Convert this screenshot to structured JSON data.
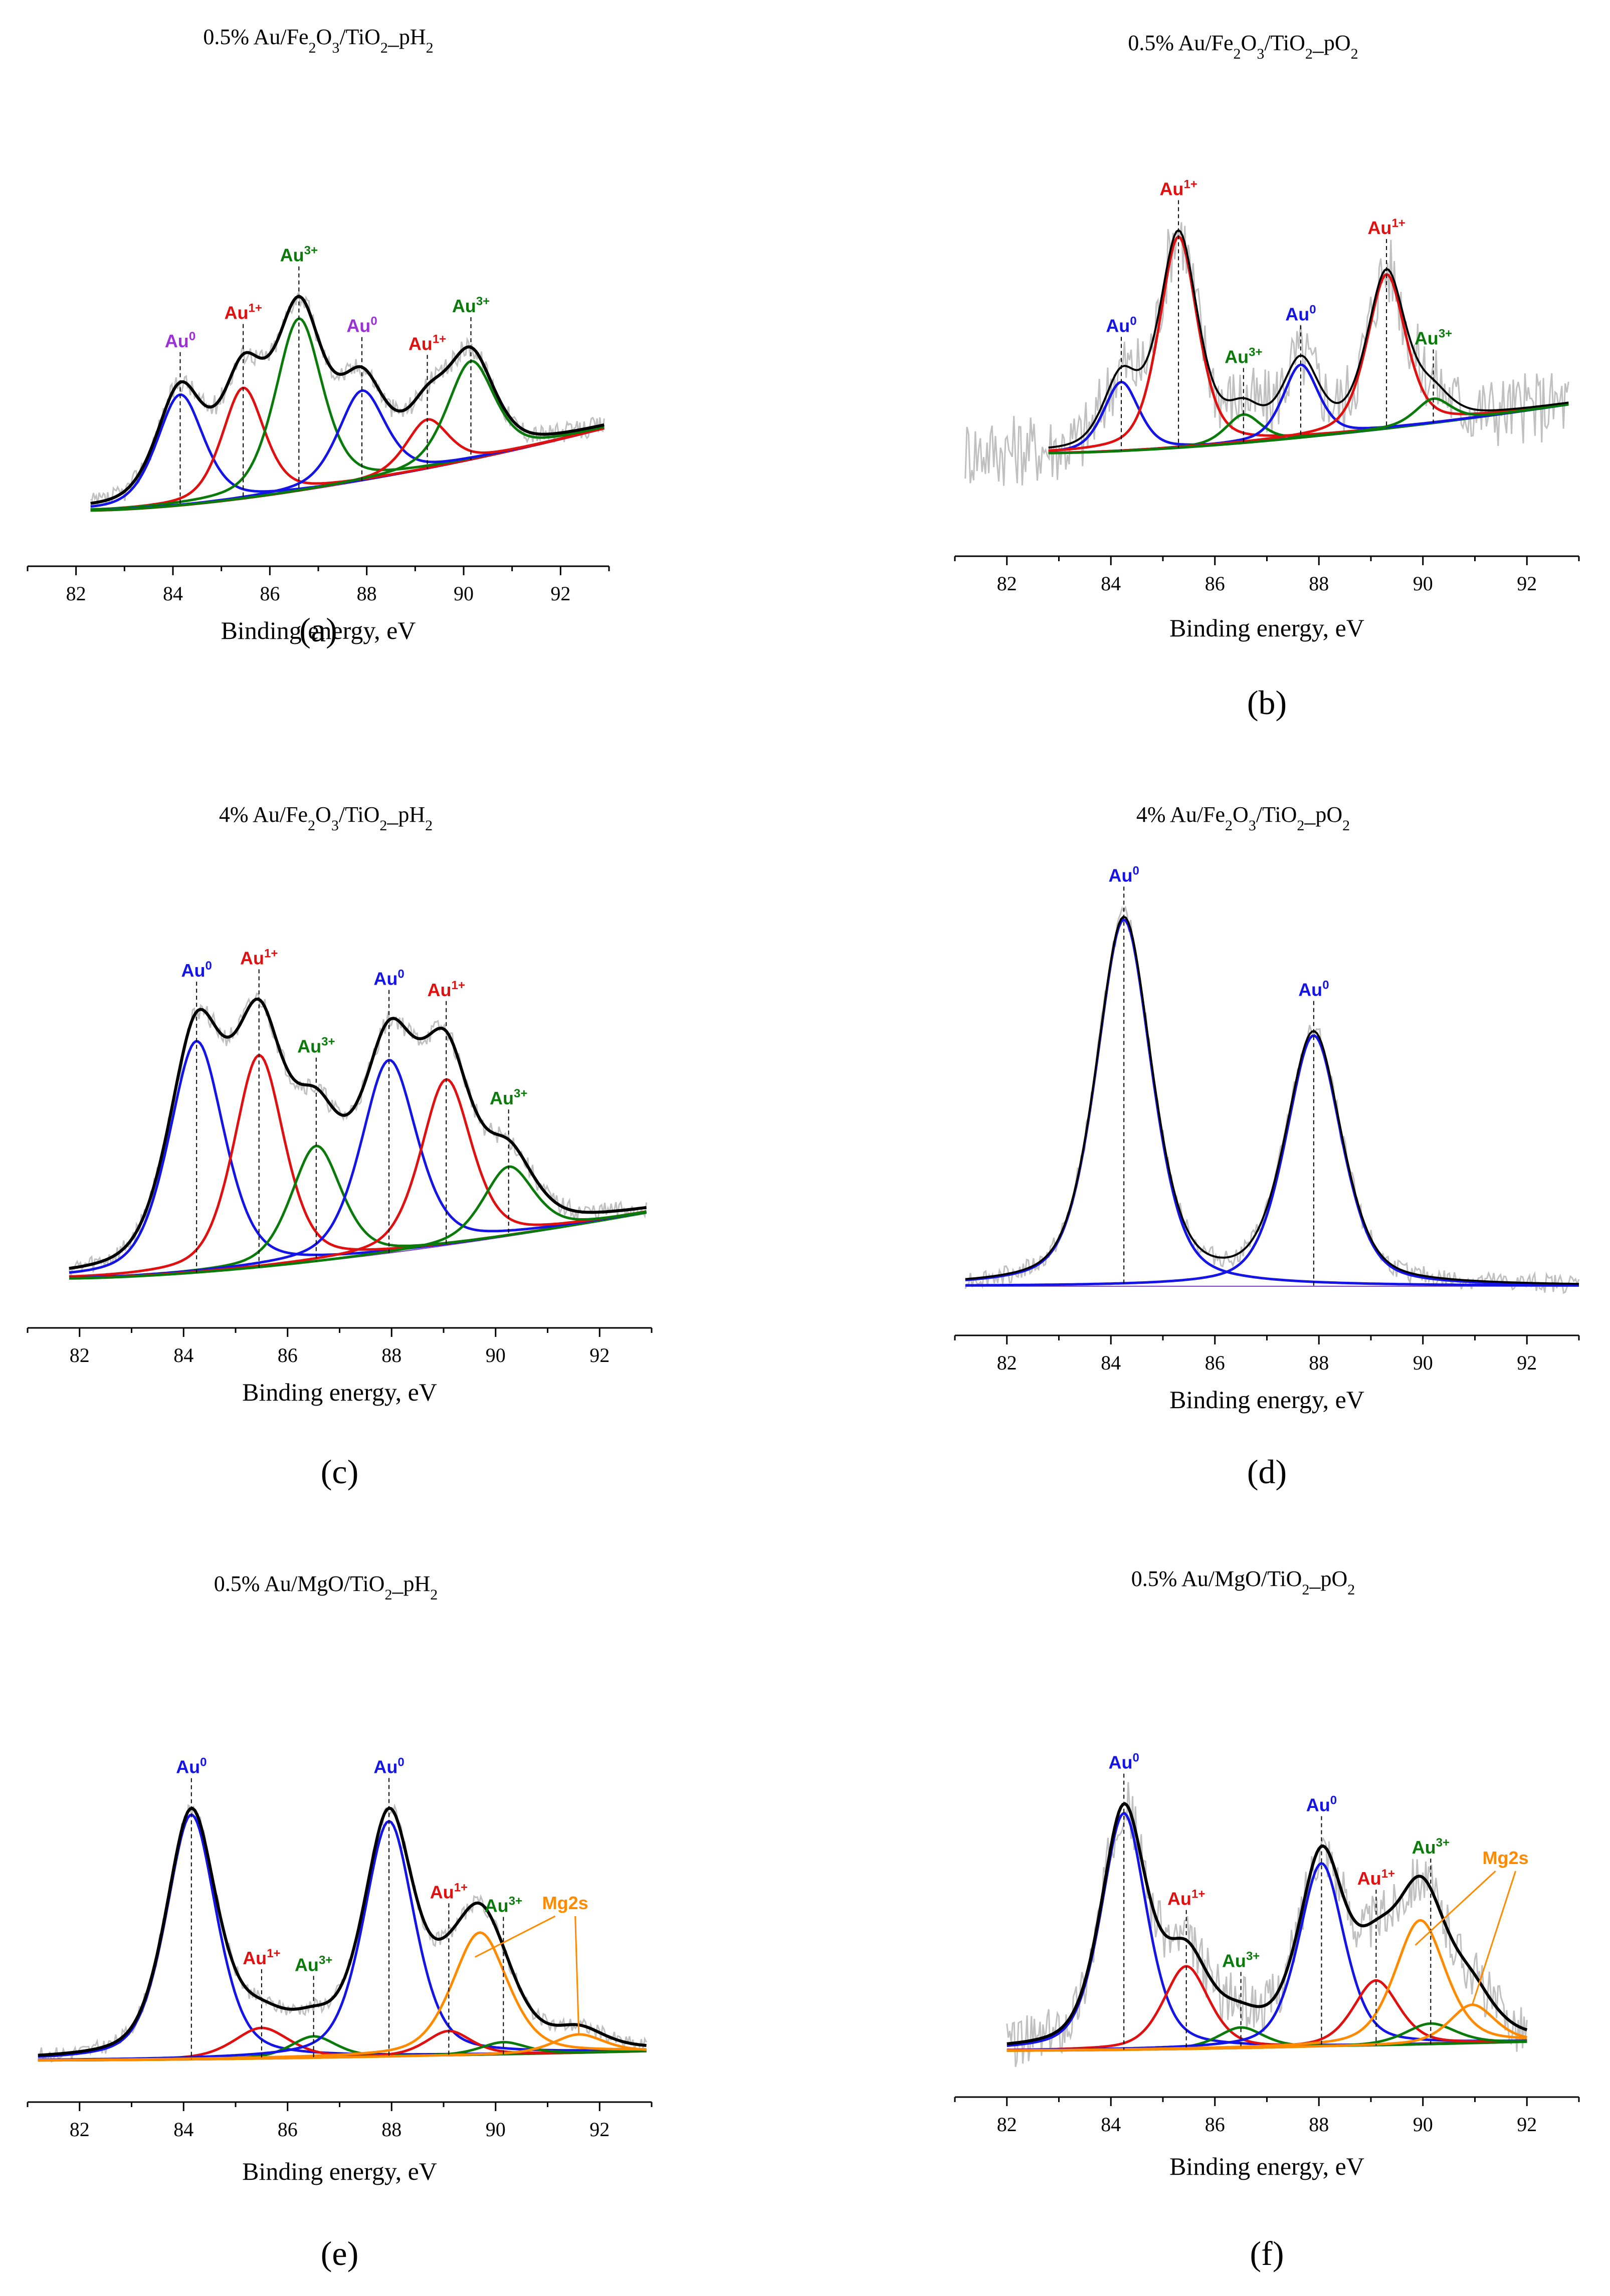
{
  "figure": {
    "xlabel": "Binding energy, eV"
  },
  "colors": {
    "au0_violet": "#9b30d8",
    "au0_blue": "#1414e6",
    "au1": "#e01010",
    "au3": "#0a7a0a",
    "mg2s": "#ff8a00",
    "envelope": "#000000",
    "raw": "#c0c0c0",
    "background": "#7a3fc0"
  },
  "chart_data": [
    {
      "id": "a",
      "type": "line",
      "panel_label": "(a)",
      "title": {
        "base": "0.5% Au/Fe",
        "s1": "2",
        "mid1": "O",
        "s2": "3",
        "mid2": "/TiO",
        "s3": "2",
        "tail": "_pH",
        "s4": "2"
      },
      "xlabel": "Binding energy, eV",
      "xlim": [
        81,
        93
      ],
      "xticks": [
        82,
        84,
        86,
        88,
        90,
        92
      ],
      "fit_range": [
        82.3,
        92.9
      ],
      "ylim": [
        0,
        1.0
      ],
      "baseline": [
        0.05,
        0.25
      ],
      "peaks": [
        {
          "label": "Au",
          "sup": "0",
          "color": "#9b30d8",
          "center": 84.15,
          "height": 0.27,
          "width": 0.5,
          "line": "#1414e6"
        },
        {
          "label": "Au",
          "sup": "1+",
          "color": "#e01010",
          "center": 85.45,
          "height": 0.27,
          "width": 0.45,
          "line": "#e01010"
        },
        {
          "label": "Au",
          "sup": "3+",
          "color": "#0a7a0a",
          "center": 86.6,
          "height": 0.42,
          "width": 0.5,
          "line": "#0a7a0a"
        },
        {
          "label": "Au",
          "sup": "0",
          "color": "#9b30d8",
          "center": 87.9,
          "height": 0.22,
          "width": 0.5,
          "line": "#1414e6"
        },
        {
          "label": "Au",
          "sup": "1+",
          "color": "#e01010",
          "center": 89.25,
          "height": 0.12,
          "width": 0.45,
          "line": "#e01010"
        },
        {
          "label": "Au",
          "sup": "3+",
          "color": "#0a7a0a",
          "center": 90.15,
          "height": 0.24,
          "width": 0.5,
          "line": "#0a7a0a"
        }
      ]
    },
    {
      "id": "b",
      "type": "line",
      "panel_label": "(b)",
      "title": {
        "base": "0.5% Au/Fe",
        "s1": "2",
        "mid1": "O",
        "s2": "3",
        "mid2": "/TiO",
        "s3": "2",
        "tail": "_pO",
        "s4": "2"
      },
      "xlabel": "Binding energy, eV",
      "xlim": [
        81,
        93
      ],
      "xticks": [
        82,
        84,
        86,
        88,
        90,
        92
      ],
      "fit_range": [
        82.8,
        92.8
      ],
      "ylim": [
        0,
        1.0
      ],
      "baseline": [
        0.18,
        0.3
      ],
      "peaks": [
        {
          "label": "Au",
          "sup": "0",
          "color": "#1414e6",
          "center": 84.2,
          "height": 0.17,
          "width": 0.35,
          "line": "#1414e6"
        },
        {
          "label": "Au",
          "sup": "1+",
          "color": "#e01010",
          "center": 85.3,
          "height": 0.52,
          "width": 0.38,
          "line": "#e01010"
        },
        {
          "label": "Au",
          "sup": "3+",
          "color": "#0a7a0a",
          "center": 86.55,
          "height": 0.07,
          "width": 0.35,
          "line": "#0a7a0a"
        },
        {
          "label": "Au",
          "sup": "0",
          "color": "#1414e6",
          "center": 87.65,
          "height": 0.18,
          "width": 0.35,
          "line": "#1414e6"
        },
        {
          "label": "Au",
          "sup": "1+",
          "color": "#e01010",
          "center": 89.3,
          "height": 0.38,
          "width": 0.38,
          "line": "#e01010"
        },
        {
          "label": "Au",
          "sup": "3+",
          "color": "#0a7a0a",
          "center": 90.2,
          "height": 0.06,
          "width": 0.35,
          "line": "#0a7a0a"
        }
      ]
    },
    {
      "id": "c",
      "type": "line",
      "panel_label": "(c)",
      "title": {
        "base": "4% Au/Fe",
        "s1": "2",
        "mid1": "O",
        "s2": "3",
        "mid2": "/TiO",
        "s3": "2",
        "tail": "_pH",
        "s4": "2"
      },
      "xlabel": "Binding energy, eV",
      "xlim": [
        81,
        93
      ],
      "xticks": [
        82,
        84,
        86,
        88,
        90,
        92
      ],
      "fit_range": [
        81.8,
        92.9
      ],
      "ylim": [
        0,
        1.0
      ],
      "baseline": [
        0.05,
        0.22
      ],
      "peaks": [
        {
          "label": "Au",
          "sup": "0",
          "color": "#1414e6",
          "center": 84.25,
          "height": 0.6,
          "width": 0.55,
          "line": "#1414e6"
        },
        {
          "label": "Au",
          "sup": "1+",
          "color": "#e01010",
          "center": 85.45,
          "height": 0.55,
          "width": 0.5,
          "line": "#e01010"
        },
        {
          "label": "Au",
          "sup": "3+",
          "color": "#0a7a0a",
          "center": 86.55,
          "height": 0.3,
          "width": 0.5,
          "line": "#0a7a0a"
        },
        {
          "label": "Au",
          "sup": "0",
          "color": "#1414e6",
          "center": 87.95,
          "height": 0.5,
          "width": 0.55,
          "line": "#1414e6"
        },
        {
          "label": "Au",
          "sup": "1+",
          "color": "#e01010",
          "center": 89.05,
          "height": 0.43,
          "width": 0.5,
          "line": "#e01010"
        },
        {
          "label": "Au",
          "sup": "3+",
          "color": "#0a7a0a",
          "center": 90.25,
          "height": 0.18,
          "width": 0.5,
          "line": "#0a7a0a"
        }
      ]
    },
    {
      "id": "d",
      "type": "line",
      "panel_label": "(d)",
      "title": {
        "base": "4% Au/Fe",
        "s1": "2",
        "mid1": "O",
        "s2": "3",
        "mid2": "/TiO",
        "s3": "2",
        "tail": "_pO",
        "s4": "2"
      },
      "xlabel": "Binding energy, eV",
      "xlim": [
        81,
        93
      ],
      "xticks": [
        82,
        84,
        86,
        88,
        90,
        92
      ],
      "fit_range": [
        81.2,
        93.0
      ],
      "ylim": [
        0,
        1.0
      ],
      "baseline": [
        0.03,
        0.03
      ],
      "peaks": [
        {
          "label": "Au",
          "sup": "0",
          "color": "#1414e6",
          "center": 84.25,
          "height": 0.95,
          "width": 0.55,
          "line": "#1414e6"
        },
        {
          "label": "Au",
          "sup": "0",
          "color": "#1414e6",
          "center": 87.9,
          "height": 0.65,
          "width": 0.55,
          "line": "#1414e6"
        }
      ]
    },
    {
      "id": "e",
      "type": "line",
      "panel_label": "(e)",
      "title": {
        "base": "0.5% Au/MgO/TiO",
        "s1": "2",
        "tail": "_pH",
        "s2": "2"
      },
      "xlabel": "Binding energy, eV",
      "xlim": [
        81,
        93
      ],
      "xticks": [
        82,
        84,
        86,
        88,
        90,
        92
      ],
      "fit_range": [
        81.2,
        92.9
      ],
      "ylim": [
        0,
        1.0
      ],
      "baseline": [
        0.03,
        0.06
      ],
      "peaks": [
        {
          "label": "Au",
          "sup": "0",
          "color": "#1414e6",
          "center": 84.15,
          "height": 0.8,
          "width": 0.5,
          "line": "#1414e6"
        },
        {
          "label": "Au",
          "sup": "1+",
          "color": "#e01010",
          "center": 85.5,
          "height": 0.1,
          "width": 0.55,
          "line": "#e01010"
        },
        {
          "label": "Au",
          "sup": "3+",
          "color": "#0a7a0a",
          "center": 86.5,
          "height": 0.07,
          "width": 0.45,
          "line": "#0a7a0a"
        },
        {
          "label": "Au",
          "sup": "0",
          "color": "#1414e6",
          "center": 87.95,
          "height": 0.77,
          "width": 0.5,
          "line": "#1414e6"
        },
        {
          "label": "Au",
          "sup": "1+",
          "color": "#e01010",
          "center": 89.1,
          "height": 0.08,
          "width": 0.45,
          "line": "#e01010"
        },
        {
          "label": "Au",
          "sup": "3+",
          "color": "#0a7a0a",
          "center": 90.15,
          "height": 0.04,
          "width": 0.45,
          "line": "#0a7a0a"
        }
      ],
      "extra": [
        {
          "label": "Mg2s",
          "color": "#ff8a00",
          "center": 89.7,
          "height": 0.4,
          "width": 0.55
        },
        {
          "label": "",
          "color": "#ff8a00",
          "center": 91.6,
          "height": 0.06,
          "width": 0.5
        }
      ]
    },
    {
      "id": "f",
      "type": "line",
      "panel_label": "(f)",
      "title": {
        "base": "0.5% Au/MgO/TiO",
        "s1": "2",
        "tail": "_pO",
        "s2": "2"
      },
      "xlabel": "Binding energy, eV",
      "xlim": [
        81,
        93
      ],
      "xticks": [
        82,
        84,
        86,
        88,
        90,
        92
      ],
      "fit_range": [
        82.0,
        92.0
      ],
      "ylim": [
        0,
        1.0
      ],
      "baseline": [
        0.03,
        0.06
      ],
      "peaks": [
        {
          "label": "Au",
          "sup": "0",
          "color": "#1414e6",
          "center": 84.25,
          "height": 0.8,
          "width": 0.45,
          "line": "#1414e6"
        },
        {
          "label": "Au",
          "sup": "1+",
          "color": "#e01010",
          "center": 85.45,
          "height": 0.28,
          "width": 0.45,
          "line": "#e01010"
        },
        {
          "label": "Au",
          "sup": "3+",
          "color": "#0a7a0a",
          "center": 86.5,
          "height": 0.07,
          "width": 0.45,
          "line": "#0a7a0a"
        },
        {
          "label": "Au",
          "sup": "0",
          "color": "#1414e6",
          "center": 88.05,
          "height": 0.62,
          "width": 0.45,
          "line": "#1414e6"
        },
        {
          "label": "Au",
          "sup": "1+",
          "color": "#e01010",
          "center": 89.1,
          "height": 0.22,
          "width": 0.45,
          "line": "#e01010"
        },
        {
          "label": "Au",
          "sup": "3+",
          "color": "#0a7a0a",
          "center": 90.15,
          "height": 0.07,
          "width": 0.5,
          "line": "#0a7a0a"
        }
      ],
      "extra": [
        {
          "label": "Mg2s",
          "color": "#ff8a00",
          "center": 89.95,
          "height": 0.42,
          "width": 0.5
        },
        {
          "label": "",
          "color": "#ff8a00",
          "center": 90.95,
          "height": 0.13,
          "width": 0.45
        }
      ]
    }
  ]
}
